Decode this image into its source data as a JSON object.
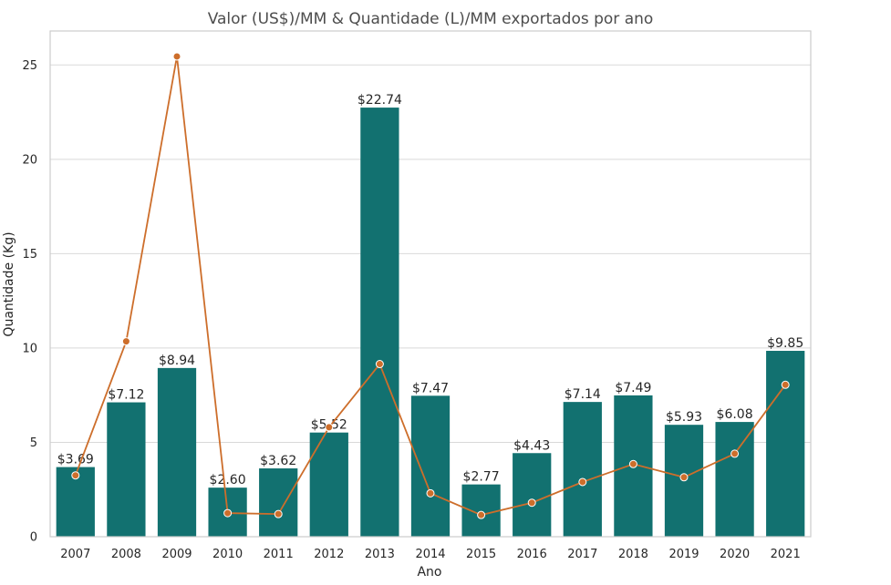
{
  "chart_data": {
    "type": "bar",
    "title": "Valor (US$)/MM & Quantidade (L)/MM exportados por ano",
    "xlabel": "Ano",
    "ylabel": "Quantidade (Kg)",
    "ylim": [
      0,
      26.8
    ],
    "yticks": [
      0,
      5,
      10,
      15,
      20,
      25
    ],
    "grid": true,
    "categories": [
      "2007",
      "2008",
      "2009",
      "2010",
      "2011",
      "2012",
      "2013",
      "2014",
      "2015",
      "2016",
      "2017",
      "2018",
      "2019",
      "2020",
      "2021"
    ],
    "series": [
      {
        "type": "bar",
        "color": "#127170",
        "values": [
          3.69,
          7.12,
          8.94,
          2.6,
          3.62,
          5.52,
          22.74,
          7.47,
          2.77,
          4.43,
          7.14,
          7.49,
          5.93,
          6.08,
          9.85
        ],
        "labels": [
          "$3.69",
          "$7.12",
          "$8.94",
          "$2.60",
          "$3.62",
          "$5.52",
          "$22.74",
          "$7.47",
          "$2.77",
          "$4.43",
          "$7.14",
          "$7.49",
          "$5.93",
          "$6.08",
          "$9.85"
        ]
      },
      {
        "type": "line",
        "color": "#cd6e2b",
        "values": [
          3.25,
          10.35,
          25.45,
          1.25,
          1.2,
          5.8,
          9.15,
          2.3,
          1.15,
          1.8,
          2.9,
          3.85,
          3.15,
          4.4,
          8.05
        ]
      }
    ]
  }
}
